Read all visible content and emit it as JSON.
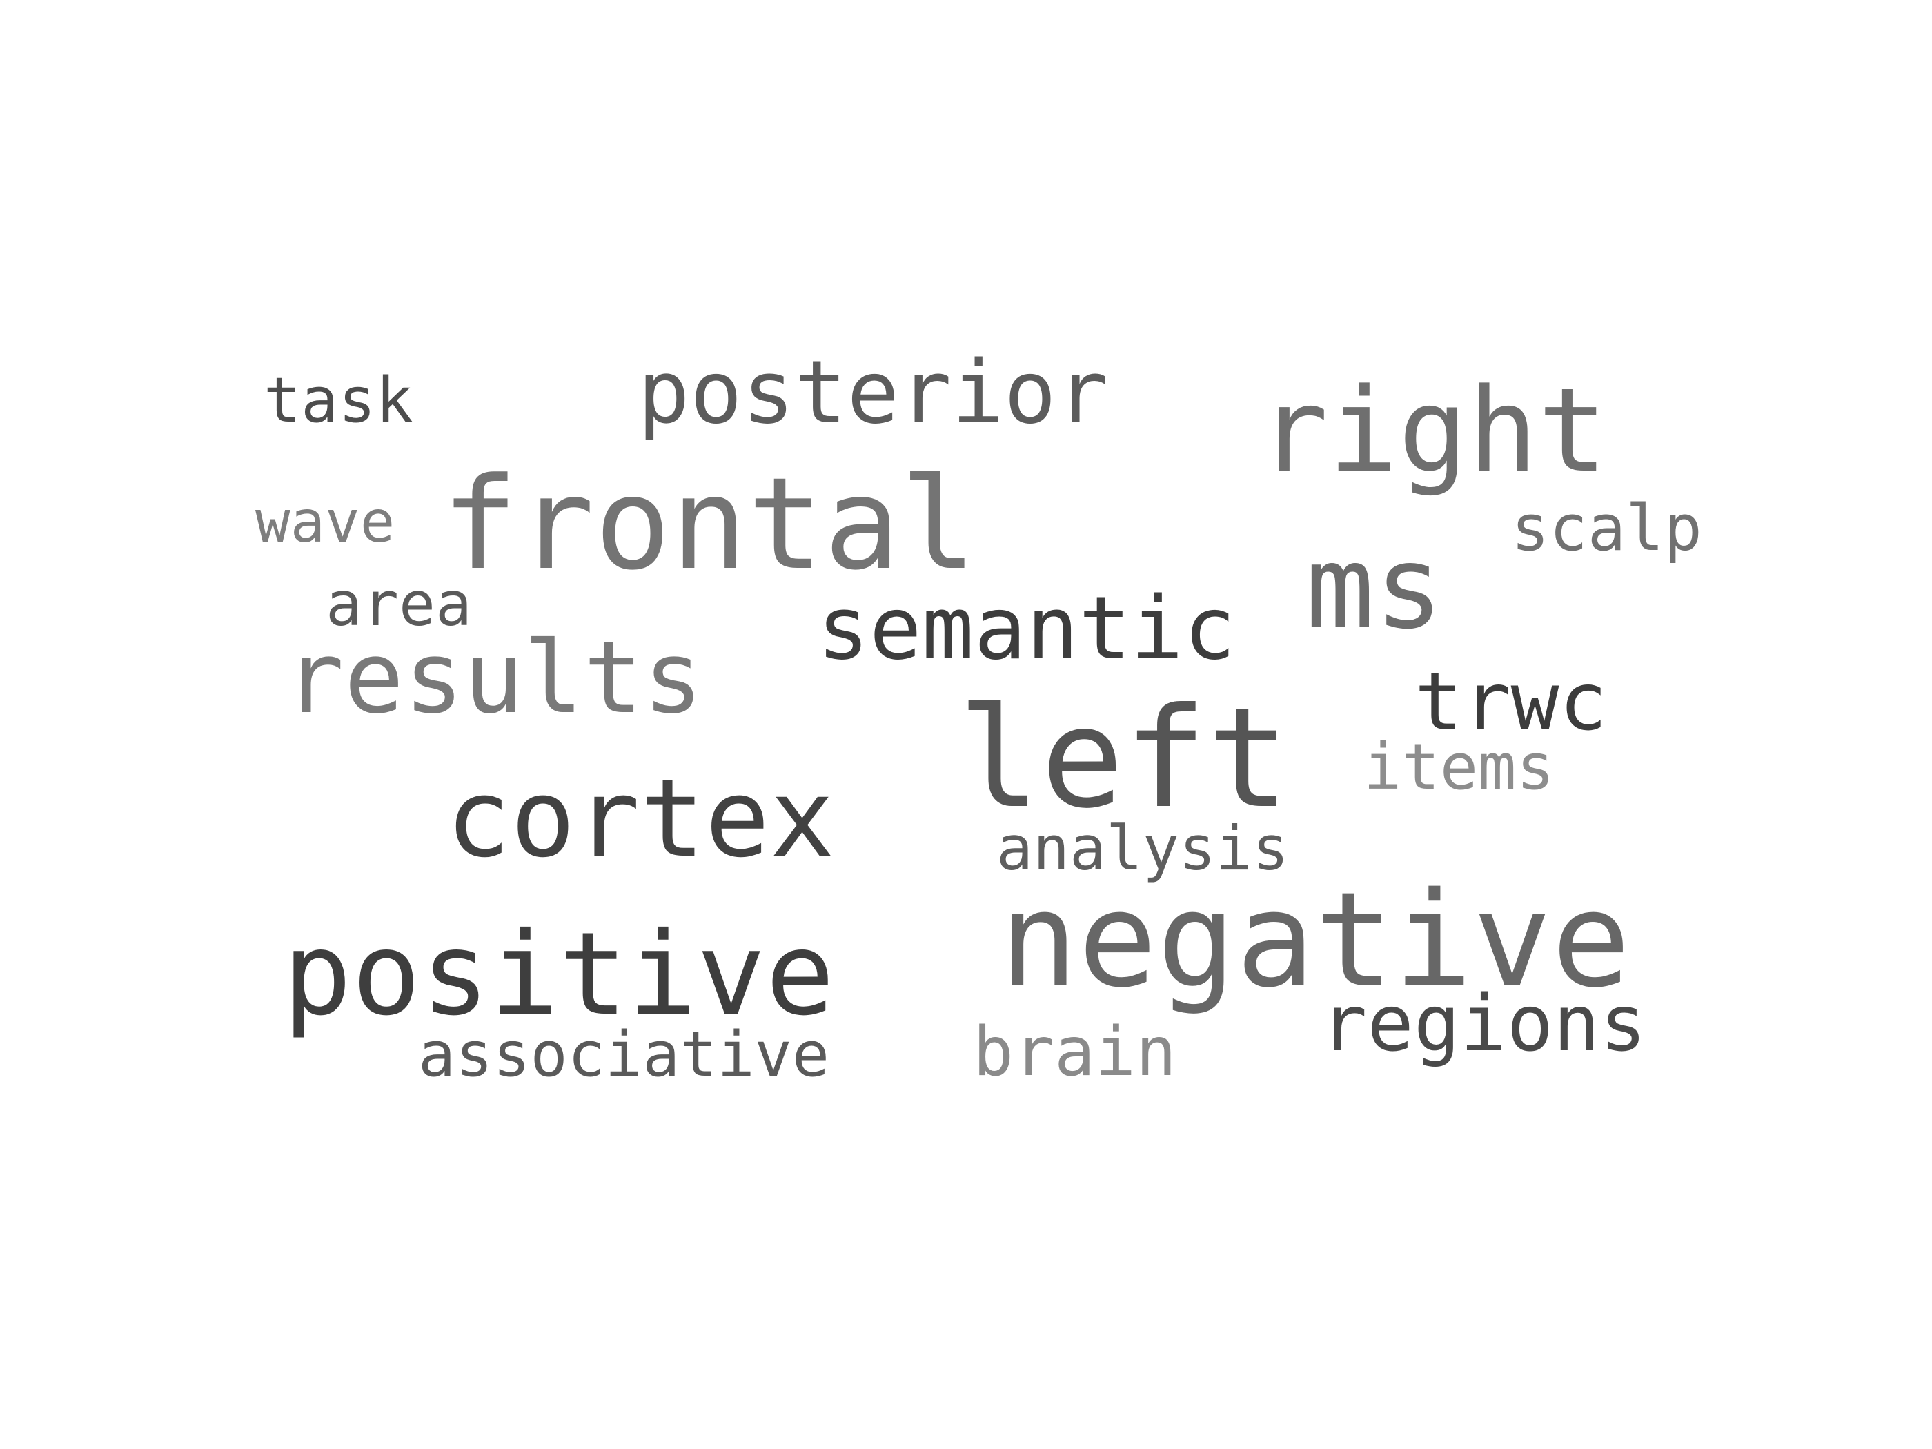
{
  "word_cloud": {
    "words": [
      {
        "text": "negative",
        "color": "#676767"
      },
      {
        "text": "positive",
        "color": "#3e3e3e"
      },
      {
        "text": "left",
        "color": "#555555"
      },
      {
        "text": "frontal",
        "color": "#747474"
      },
      {
        "text": "cortex",
        "color": "#424242"
      },
      {
        "text": "results",
        "color": "#797979"
      },
      {
        "text": "right",
        "color": "#6f6f6f"
      },
      {
        "text": "ms",
        "color": "#6c6c6c"
      },
      {
        "text": "semantic",
        "color": "#3d3d3d"
      },
      {
        "text": "posterior",
        "color": "#5c5c5c"
      },
      {
        "text": "regions",
        "color": "#4a4a4a"
      },
      {
        "text": "trwc",
        "color": "#3c3c3c"
      },
      {
        "text": "associative",
        "color": "#5a5a5a"
      },
      {
        "text": "brain",
        "color": "#8a8a8a"
      },
      {
        "text": "analysis",
        "color": "#5e5e5e"
      },
      {
        "text": "items",
        "color": "#8d8d8d"
      },
      {
        "text": "scalp",
        "color": "#717171"
      },
      {
        "text": "task",
        "color": "#4d4d4d"
      },
      {
        "text": "area",
        "color": "#5a5a5a"
      },
      {
        "text": "wave",
        "color": "#7e7e7e"
      }
    ]
  }
}
